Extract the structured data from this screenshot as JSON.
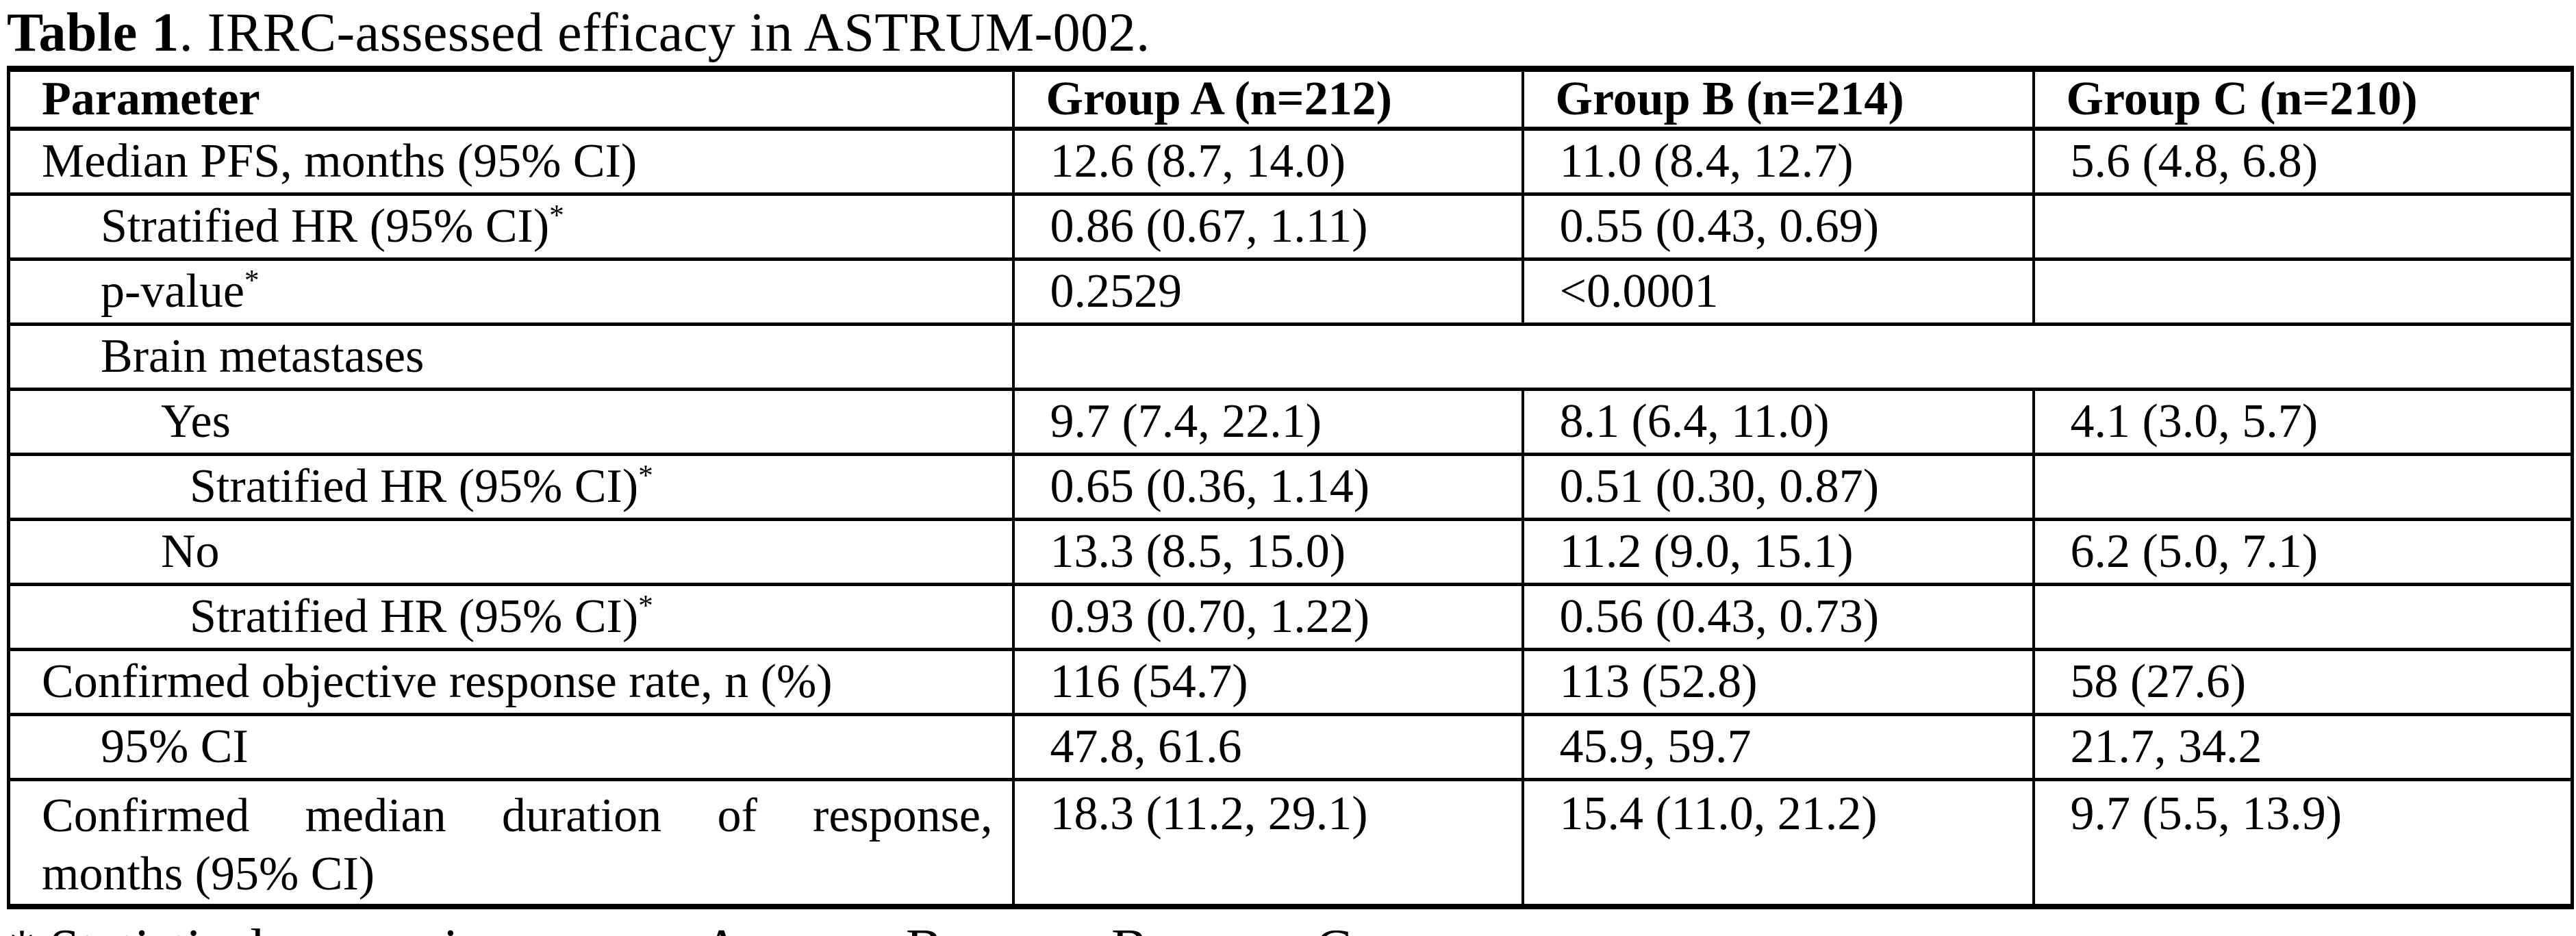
{
  "page": {
    "title_bold": "Table 1",
    "title_rest": ". IRRC-assessed efficacy in ASTRUM-002.",
    "footnote": "* Statistical comparison: group A versus B, group B versus C."
  },
  "colors": {
    "text": "#000000",
    "border": "#000000",
    "background": "#ffffff"
  },
  "table": {
    "columns": [
      "Parameter",
      "Group A (n=212)",
      "Group B (n=214)",
      "Group C (n=210)"
    ],
    "rows": [
      {
        "param": "Median PFS, months (95% CI)",
        "indent": 0,
        "sup": "",
        "values": [
          "12.6 (8.7, 14.0)",
          "11.0 (8.4, 12.7)",
          "5.6 (4.8, 6.8)"
        ]
      },
      {
        "param": "Stratified HR (95% CI)",
        "indent": 1,
        "sup": "*",
        "values": [
          "0.86 (0.67, 1.11)",
          "0.55 (0.43, 0.69)",
          ""
        ]
      },
      {
        "param": "p-value",
        "indent": 1,
        "sup": "*",
        "values": [
          "0.2529",
          "<0.0001",
          ""
        ]
      },
      {
        "param": "Brain metastases",
        "indent": 1,
        "sup": "",
        "merged": true,
        "values": [
          ""
        ]
      },
      {
        "param": "Yes",
        "indent": 2,
        "sup": "",
        "values": [
          "9.7 (7.4, 22.1)",
          "8.1 (6.4, 11.0)",
          "4.1 (3.0, 5.7)"
        ]
      },
      {
        "param": "Stratified HR (95% CI)",
        "indent": 3,
        "sup": "*",
        "values": [
          "0.65 (0.36, 1.14)",
          "0.51 (0.30, 0.87)",
          ""
        ]
      },
      {
        "param": "No",
        "indent": 2,
        "sup": "",
        "values": [
          "13.3 (8.5, 15.0)",
          "11.2 (9.0, 15.1)",
          "6.2 (5.0, 7.1)"
        ]
      },
      {
        "param": "Stratified HR (95% CI)",
        "indent": 3,
        "sup": "*",
        "values": [
          "0.93 (0.70, 1.22)",
          "0.56 (0.43, 0.73)",
          ""
        ]
      },
      {
        "param": "Confirmed objective response rate, n (%)",
        "indent": 0,
        "sup": "",
        "values": [
          "116 (54.7)",
          "113 (52.8)",
          "58 (27.6)"
        ]
      },
      {
        "param": "95% CI",
        "indent": 1,
        "sup": "",
        "values": [
          "47.8, 61.6",
          "45.9, 59.7",
          "21.7, 34.2"
        ]
      },
      {
        "param_lines": [
          "Confirmed median duration of response,",
          "months (95% CI)"
        ],
        "indent": 0,
        "sup": "",
        "values": [
          "18.3 (11.2, 29.1)",
          "15.4 (11.0, 21.2)",
          "9.7 (5.5, 13.9)"
        ]
      }
    ]
  }
}
